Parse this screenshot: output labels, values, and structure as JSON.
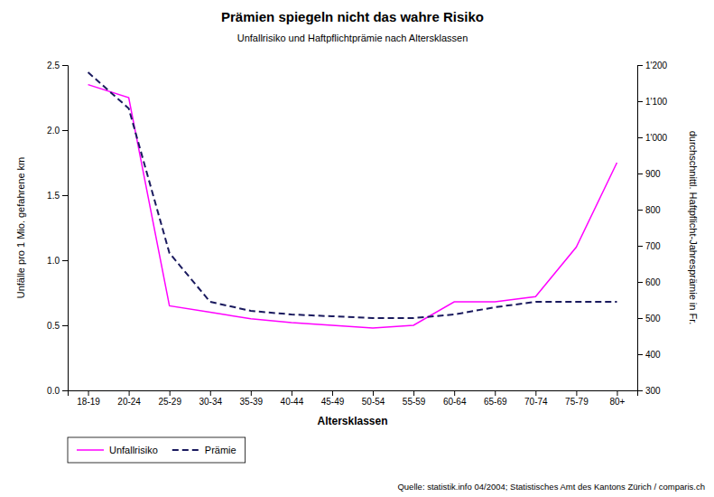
{
  "chart_data": {
    "type": "line",
    "title": "Prämien spiegeln nicht das wahre Risiko",
    "subtitle": "Unfallrisiko und Haftpflichtprämie nach Altersklassen",
    "xlabel": "Altersklassen",
    "ylabel": "Unfälle pro 1 Mio. gefahrene km",
    "y2label": "durchschnittl. Haftpflicht-Jahresprämie in Fr.",
    "source": "Quelle: statistik.info 04/2004; Statistisches Amt des Kantons Zürich / comparis.ch",
    "categories": [
      "18-19",
      "20-24",
      "25-29",
      "30-34",
      "35-39",
      "40-44",
      "45-49",
      "50-54",
      "55-59",
      "60-64",
      "65-69",
      "70-74",
      "75-79",
      "80+"
    ],
    "series": [
      {
        "name": "Unfallrisiko",
        "color": "#FF00FF",
        "line_style": "solid",
        "values": [
          2.35,
          2.25,
          0.65,
          0.6,
          0.55,
          0.52,
          0.5,
          0.48,
          0.5,
          0.68,
          0.68,
          0.72,
          1.1,
          1.75
        ]
      },
      {
        "name": "Prämie",
        "color": "#1a1a5e",
        "line_style": "dashed",
        "axis": "y2",
        "values": [
          1180,
          1080,
          680,
          545,
          520,
          510,
          505,
          500,
          500,
          510,
          530,
          545,
          545,
          545
        ]
      }
    ],
    "ylim": [
      0.0,
      2.5
    ],
    "yticks": [
      {
        "value": 0.0,
        "label": "0.0"
      },
      0.5,
      {
        "value": 1.0,
        "label": "1.0"
      },
      1.5,
      {
        "value": 2.0,
        "label": "2.0"
      },
      2.5
    ],
    "y2lim": [
      300,
      1200
    ],
    "y2ticks": [
      300,
      400,
      500,
      600,
      700,
      800,
      900,
      {
        "value": 1000,
        "label": "1'000"
      },
      {
        "value": 1100,
        "label": "1'100"
      },
      {
        "value": 1200,
        "label": "1'200"
      }
    ],
    "grid": false,
    "legend": "lower left"
  }
}
